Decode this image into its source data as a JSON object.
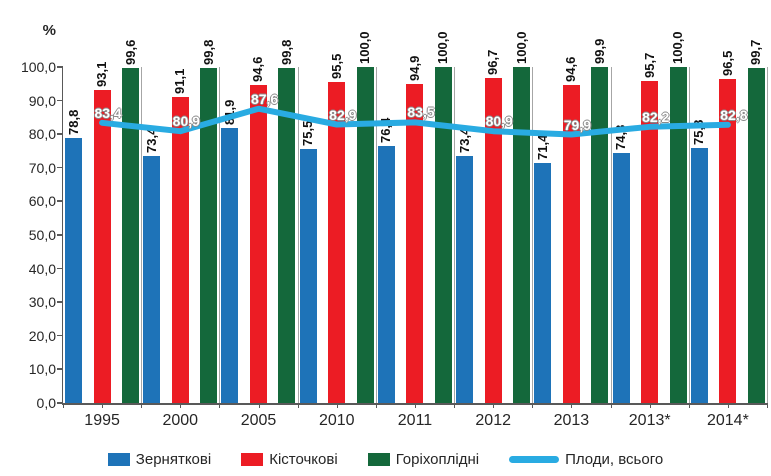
{
  "chart_data": {
    "type": "bar",
    "overlay": "line",
    "title": "",
    "ylabel": "%",
    "xlabel": "",
    "ylim": [
      0,
      100
    ],
    "ytick_step": 10,
    "yticks": [
      "0,0",
      "10,0",
      "20,0",
      "30,0",
      "40,0",
      "50,0",
      "60,0",
      "70,0",
      "80,0",
      "90,0",
      "100,0"
    ],
    "grid": false,
    "legend_position": "bottom",
    "categories": [
      "1995",
      "2000",
      "2005",
      "2010",
      "2011",
      "2012",
      "2013",
      "2013*",
      "2014*"
    ],
    "series": [
      {
        "name": "Зерняткові",
        "color": "#1E73B8",
        "values": [
          78.8,
          73.4,
          81.9,
          75.5,
          76.4,
          73.4,
          71.4,
          74.3,
          75.8
        ]
      },
      {
        "name": "Кісточкові",
        "color": "#EC1C24",
        "values": [
          93.1,
          91.1,
          94.6,
          95.5,
          94.9,
          96.7,
          94.6,
          95.7,
          96.5
        ]
      },
      {
        "name": "Горіхоплідні",
        "color": "#14683B",
        "values": [
          99.6,
          99.8,
          99.8,
          100.0,
          100.0,
          100.0,
          99.9,
          100.0,
          99.7
        ]
      }
    ],
    "line_series": {
      "name": "Плоди,  всього",
      "color": "#29ABE2",
      "values": [
        83.4,
        80.9,
        87.6,
        82.9,
        83.5,
        80.9,
        79.9,
        82.2,
        82.8
      ]
    },
    "colors": {
      "axis": "#595959",
      "separator": "#A6A6A6",
      "bar_label_text": "#111111",
      "line_label_text": "#FFFFFF"
    }
  }
}
